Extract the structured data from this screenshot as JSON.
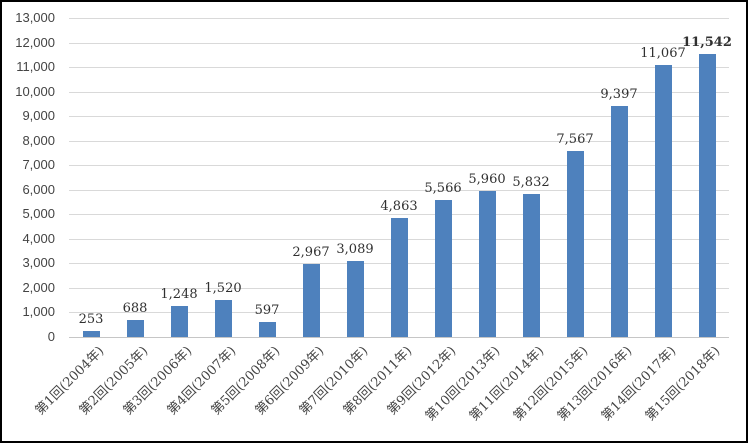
{
  "chart_data": {
    "type": "bar",
    "title": "",
    "xlabel": "",
    "ylabel": "",
    "categories": [
      "第1回(2004年)",
      "第2回(2005年)",
      "第3回(2006年)",
      "第4回(2007年)",
      "第5回(2008年)",
      "第6回(2009年)",
      "第7回(2010年)",
      "第8回(2011年)",
      "第9回(2012年)",
      "第10回(2013年)",
      "第11回(2014年)",
      "第12回(2015年)",
      "第13回(2016年)",
      "第14回(2017年)",
      "第15回(2018年)"
    ],
    "values": [
      253,
      688,
      1248,
      1520,
      597,
      2967,
      3089,
      4863,
      5566,
      5960,
      5832,
      7567,
      9397,
      11067,
      11542
    ],
    "data_labels": [
      "253",
      "688",
      "1,248",
      "1,520",
      "597",
      "2,967",
      "3,089",
      "4,863",
      "5,566",
      "5,960",
      "5,832",
      "7,567",
      "9,397",
      "11,067",
      "11,542"
    ],
    "ylim": [
      0,
      13000
    ],
    "ytick_step": 1000,
    "ytick_labels": [
      "0",
      "1,000",
      "2,000",
      "3,000",
      "4,000",
      "5,000",
      "6,000",
      "7,000",
      "8,000",
      "9,000",
      "10,000",
      "11,000",
      "12,000",
      "13,000"
    ],
    "grid": true,
    "legend": "none",
    "bar_color": "#4E81BD",
    "gridline_color": "#D9D9D9",
    "axis_line_color": "#C6C6C6",
    "axis_label_color": "#444444",
    "value_label_color": "#303030",
    "last_value_bold": true
  }
}
